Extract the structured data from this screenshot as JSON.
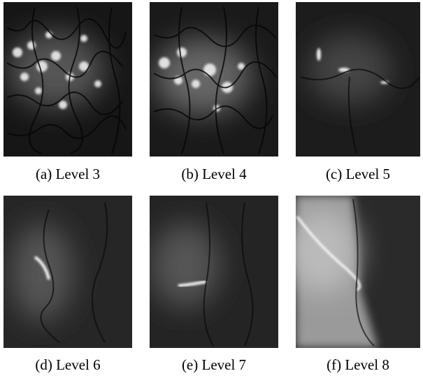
{
  "figure": {
    "panels": [
      {
        "caption": "(a) Level 3"
      },
      {
        "caption": "(b) Level 4"
      },
      {
        "caption": "(c) Level 5"
      },
      {
        "caption": "(d) Level 6"
      },
      {
        "caption": "(e) Level 7"
      },
      {
        "caption": "(f) Level 8"
      }
    ]
  }
}
